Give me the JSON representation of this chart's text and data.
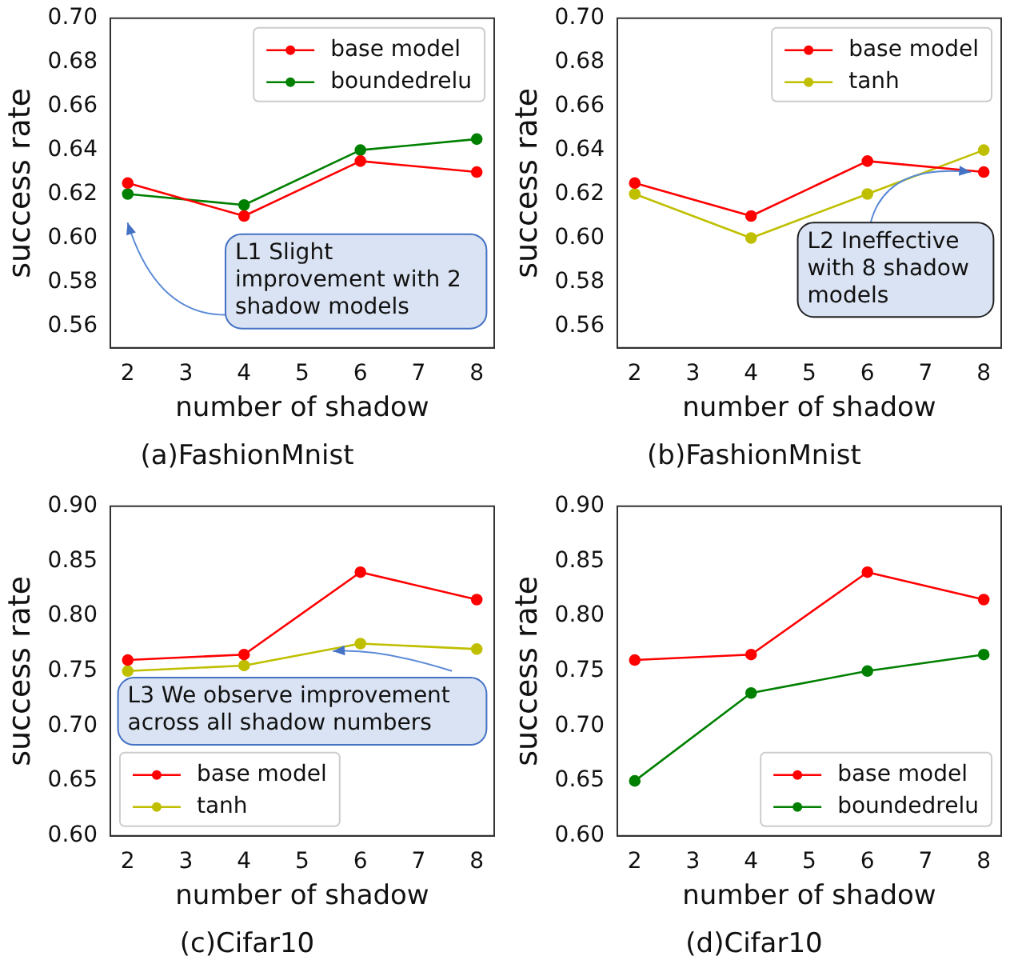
{
  "chart_data": [
    {
      "type": "line",
      "title": "(a)FashionMnist",
      "xlabel": "number of shadow",
      "ylabel": "success rate",
      "x": [
        2,
        4,
        6,
        8
      ],
      "series": [
        {
          "name": "base model",
          "color": "#ff0000",
          "values": [
            0.625,
            0.61,
            0.635,
            0.63
          ]
        },
        {
          "name": "boundedrelu",
          "color": "#008000",
          "values": [
            0.62,
            0.615,
            0.64,
            0.645
          ]
        }
      ],
      "xlim": [
        1.7,
        8.3
      ],
      "xticks": [
        2,
        3,
        4,
        5,
        6,
        7,
        8
      ],
      "ylim": [
        0.55,
        0.7
      ],
      "yticks": [
        {
          "value": 0.56,
          "label": "0.56"
        },
        {
          "value": 0.58,
          "label": "0.58"
        },
        {
          "value": 0.6,
          "label": "0.60"
        },
        {
          "value": 0.62,
          "label": "0.62"
        },
        {
          "value": 0.64,
          "label": "0.64"
        },
        {
          "value": 0.66,
          "label": "0.66"
        },
        {
          "value": 0.68,
          "label": "0.68"
        },
        {
          "value": 0.7,
          "label": "0.70"
        }
      ],
      "annotations": [
        "L1 Slight improvement with 2 shadow models"
      ],
      "legend": "top right",
      "marker": "circle",
      "grid": false
    },
    {
      "type": "line",
      "title": "(b)FashionMnist",
      "xlabel": "number of shadow",
      "ylabel": "success rate",
      "x": [
        2,
        4,
        6,
        8
      ],
      "series": [
        {
          "name": "base model",
          "color": "#ff0000",
          "values": [
            0.625,
            0.61,
            0.635,
            0.63
          ]
        },
        {
          "name": "tanh",
          "color": "#bfbf00",
          "values": [
            0.62,
            0.6,
            0.62,
            0.64
          ]
        }
      ],
      "xlim": [
        1.7,
        8.3
      ],
      "xticks": [
        2,
        3,
        4,
        5,
        6,
        7,
        8
      ],
      "ylim": [
        0.55,
        0.7
      ],
      "yticks": [
        {
          "value": 0.56,
          "label": "0.56"
        },
        {
          "value": 0.58,
          "label": "0.58"
        },
        {
          "value": 0.6,
          "label": "0.60"
        },
        {
          "value": 0.62,
          "label": "0.62"
        },
        {
          "value": 0.64,
          "label": "0.64"
        },
        {
          "value": 0.66,
          "label": "0.66"
        },
        {
          "value": 0.68,
          "label": "0.68"
        },
        {
          "value": 0.7,
          "label": "0.70"
        }
      ],
      "annotations": [
        {
          "text": "L2 Ineffective with 8 shadow models",
          "x": 8,
          "y": 0.63
        }
      ],
      "legend": "top right",
      "marker": "circle",
      "grid": false
    },
    {
      "type": "line",
      "title": "(c)Cifar10",
      "xlabel": "number of shadow",
      "ylabel": "success rate",
      "x": [
        2,
        4,
        6,
        8
      ],
      "series": [
        {
          "name": "base model",
          "color": "#ff0000",
          "values": [
            0.76,
            0.765,
            0.84,
            0.815
          ]
        },
        {
          "name": "tanh",
          "color": "#bfbf00",
          "values": [
            0.75,
            0.755,
            0.775,
            0.77
          ]
        }
      ],
      "xlim": [
        1.7,
        8.3
      ],
      "xticks": [
        2,
        3,
        4,
        5,
        6,
        7,
        8
      ],
      "ylim": [
        0.6,
        0.9
      ],
      "yticks": [
        {
          "value": 0.6,
          "label": "0.60"
        },
        {
          "value": 0.65,
          "label": "0.65"
        },
        {
          "value": 0.7,
          "label": "0.70"
        },
        {
          "value": 0.75,
          "label": "0.75"
        },
        {
          "value": 0.8,
          "label": "0.80"
        },
        {
          "value": 0.85,
          "label": "0.85"
        },
        {
          "value": 0.9,
          "label": "0.90"
        }
      ],
      "annotations": [
        "L3 We observe improvement across all shadow numbers"
      ],
      "legend": "bottom left",
      "marker": "circle",
      "grid": false
    },
    {
      "type": "line",
      "title": "(d)Cifar10",
      "xlabel": "number of shadow",
      "ylabel": "success rate",
      "x": [
        2,
        4,
        6,
        8
      ],
      "series": [
        {
          "name": "base model",
          "color": "#ff0000",
          "values": [
            0.76,
            0.765,
            0.84,
            0.815
          ]
        },
        {
          "name": "boundedrelu",
          "color": "#008000",
          "values": [
            0.65,
            0.73,
            0.75,
            0.765
          ]
        }
      ],
      "xlim": [
        1.7,
        8.3
      ],
      "xticks": [
        2,
        3,
        4,
        5,
        6,
        7,
        8
      ],
      "ylim": [
        0.6,
        0.9
      ],
      "yticks": [
        {
          "value": 0.6,
          "label": "0.60"
        },
        {
          "value": 0.65,
          "label": "0.65"
        },
        {
          "value": 0.7,
          "label": "0.70"
        },
        {
          "value": 0.75,
          "label": "0.75"
        },
        {
          "value": 0.8,
          "label": "0.80"
        },
        {
          "value": 0.85,
          "label": "0.85"
        },
        {
          "value": 0.9,
          "label": "0.90"
        }
      ],
      "legend": "bottom right",
      "marker": "circle",
      "grid": false
    }
  ]
}
